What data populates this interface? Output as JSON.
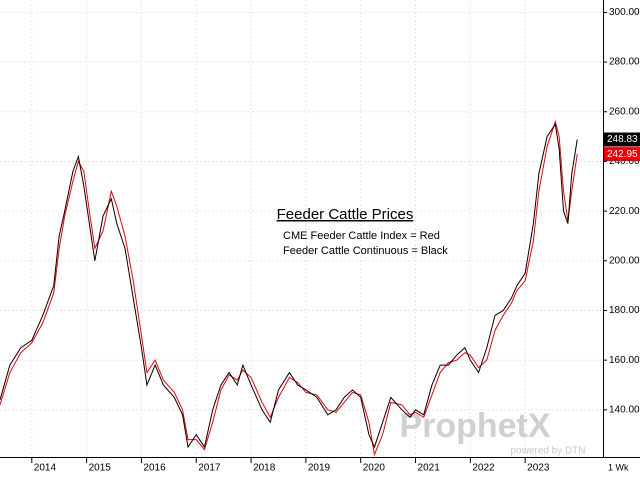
{
  "chart_data": {
    "type": "line",
    "title": "Feeder Cattle Prices",
    "annotations": [
      "CME Feeder Cattle Index = Red",
      "Feeder Cattle Continuous = Black"
    ],
    "watermark": [
      "ProphetX",
      "powered by DTN"
    ],
    "period": "1 Wk",
    "x": [
      2013.42,
      2013.6,
      2013.8,
      2014.0,
      2014.2,
      2014.4,
      2014.5,
      2014.6,
      2014.75,
      2014.85,
      2014.95,
      2015.05,
      2015.15,
      2015.3,
      2015.45,
      2015.55,
      2015.7,
      2015.85,
      2016.0,
      2016.1,
      2016.25,
      2016.4,
      2016.6,
      2016.75,
      2016.85,
      2017.0,
      2017.15,
      2017.3,
      2017.45,
      2017.6,
      2017.75,
      2017.85,
      2018.0,
      2018.2,
      2018.35,
      2018.5,
      2018.7,
      2018.85,
      2019.0,
      2019.2,
      2019.4,
      2019.55,
      2019.7,
      2019.85,
      2020.0,
      2020.15,
      2020.25,
      2020.4,
      2020.55,
      2020.75,
      2020.9,
      2021.0,
      2021.15,
      2021.3,
      2021.45,
      2021.6,
      2021.75,
      2021.9,
      2022.0,
      2022.15,
      2022.3,
      2022.45,
      2022.6,
      2022.75,
      2022.85,
      2023.0,
      2023.15,
      2023.25,
      2023.4,
      2023.55,
      2023.62,
      2023.7,
      2023.78,
      2023.85,
      2023.95
    ],
    "series": [
      {
        "color": "#000000",
        "values": [
          144,
          158,
          165,
          168,
          178,
          190,
          210,
          220,
          236,
          242,
          230,
          215,
          200,
          218,
          225,
          215,
          205,
          185,
          165,
          150,
          158,
          150,
          145,
          138,
          125,
          130,
          125,
          140,
          150,
          155,
          150,
          158,
          150,
          140,
          135,
          148,
          155,
          150,
          148,
          145,
          138,
          140,
          145,
          148,
          145,
          130,
          125,
          135,
          145,
          140,
          137,
          140,
          138,
          150,
          158,
          158,
          162,
          165,
          160,
          155,
          165,
          178,
          180,
          185,
          190,
          195,
          215,
          235,
          250,
          255,
          245,
          220,
          215,
          235,
          248.83
        ]
      },
      {
        "color": "#e8000b",
        "values": [
          142,
          155,
          163,
          167,
          175,
          187,
          205,
          218,
          232,
          240,
          236,
          220,
          205,
          212,
          228,
          222,
          210,
          192,
          170,
          155,
          160,
          152,
          147,
          140,
          128,
          128,
          124,
          135,
          148,
          154,
          152,
          156,
          153,
          143,
          137,
          145,
          153,
          151,
          147,
          146,
          140,
          139,
          143,
          147,
          146,
          135,
          122,
          130,
          143,
          142,
          138,
          139,
          137,
          146,
          155,
          159,
          160,
          163,
          162,
          157,
          160,
          172,
          178,
          183,
          188,
          192,
          208,
          228,
          246,
          256,
          250,
          228,
          216,
          228,
          242.95
        ]
      }
    ],
    "xlim": [
      2013.42,
      2024.42
    ],
    "xticks": [
      2014,
      2015,
      2016,
      2017,
      2018,
      2019,
      2020,
      2021,
      2022,
      2023
    ],
    "ylim": [
      121,
      305
    ],
    "yticks": [
      {
        "value": 140,
        "label": "140.00"
      },
      {
        "value": 160,
        "label": "160.00"
      },
      {
        "value": 180,
        "label": "180.00"
      },
      {
        "value": 200,
        "label": "200.00"
      },
      {
        "value": 220,
        "label": "220.00"
      },
      {
        "value": 240,
        "label": "240.00"
      },
      {
        "value": 260,
        "label": "260.00"
      },
      {
        "value": 280,
        "label": "280.00"
      },
      {
        "value": 300,
        "label": "300.00"
      }
    ],
    "grid": true
  }
}
